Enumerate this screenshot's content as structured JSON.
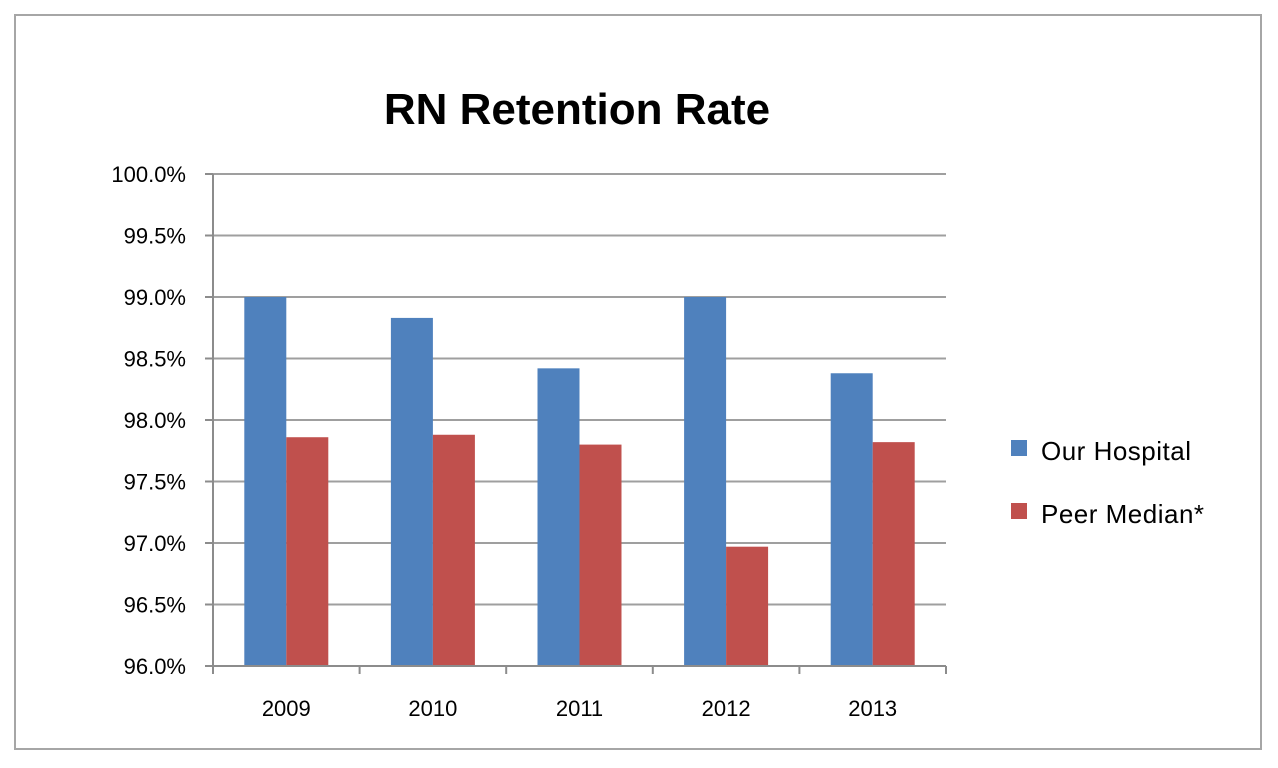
{
  "chart_data": {
    "type": "bar",
    "title": "RN Retention Rate",
    "xlabel": "",
    "ylabel": "",
    "categories": [
      "2009",
      "2010",
      "2011",
      "2012",
      "2013"
    ],
    "series": [
      {
        "name": "Our Hospital",
        "color": "#4f81bd",
        "values": [
          99.0,
          98.83,
          98.42,
          99.0,
          98.38
        ]
      },
      {
        "name": "Peer Median*",
        "color": "#c0504d",
        "values": [
          97.86,
          97.88,
          97.8,
          96.97,
          97.82
        ]
      }
    ],
    "ylim": [
      96.0,
      100.0
    ],
    "yticks": [
      96.0,
      96.5,
      97.0,
      97.5,
      98.0,
      98.5,
      99.0,
      99.5,
      100.0
    ],
    "ytick_labels": [
      "96.0%",
      "96.5%",
      "97.0%",
      "97.5%",
      "98.0%",
      "98.5%",
      "99.0%",
      "99.5%",
      "100.0%"
    ],
    "grid": true,
    "gridline_color": "#9f9f9f",
    "legend_position": "right"
  }
}
